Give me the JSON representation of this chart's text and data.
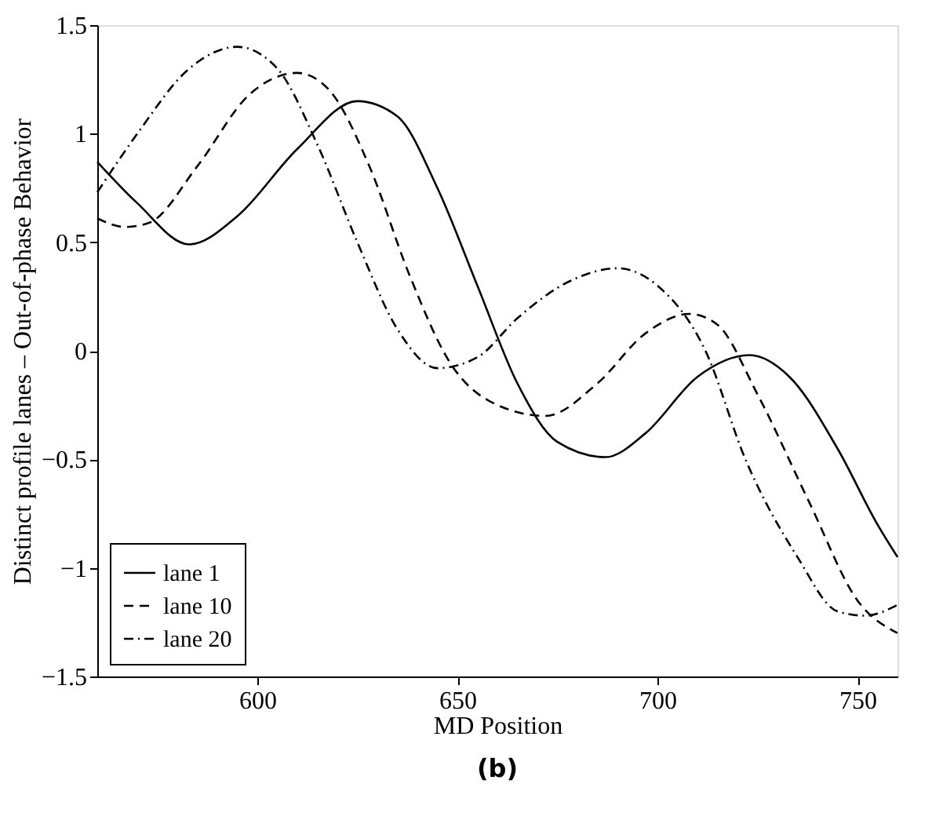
{
  "chart_data": {
    "type": "line",
    "xlabel": "MD Position",
    "ylabel": "Distinct profile lanes – Out-of-phase Behavior",
    "annotations": [
      "(b)"
    ],
    "xlim": [
      560,
      760
    ],
    "xticks": [
      600,
      650,
      700,
      750
    ],
    "ylim": [
      -1.5,
      1.5
    ],
    "yticks": [
      -1.5,
      -1,
      -0.5,
      0,
      0.5,
      1,
      1.5
    ],
    "grid": false,
    "legend": "bottom left",
    "marker": "none",
    "series": [
      {
        "name": "lane 1",
        "color": "#000000",
        "line_style": "solid",
        "x": [
          560,
          570,
          583,
          595,
          610,
          625,
          635,
          645,
          655,
          665,
          675,
          687,
          697,
          710,
          723,
          733,
          745,
          755,
          760
        ],
        "values": [
          0.87,
          0.68,
          0.49,
          0.62,
          0.93,
          1.15,
          1.08,
          0.75,
          0.3,
          -0.15,
          -0.42,
          -0.49,
          -0.38,
          -0.12,
          -0.02,
          -0.12,
          -0.45,
          -0.8,
          -0.95
        ]
      },
      {
        "name": "lane 10",
        "color": "#000000",
        "line_style": "dashed",
        "x": [
          560,
          567,
          573,
          585,
          598,
          610,
          618,
          628,
          638,
          648,
          660,
          672,
          685,
          697,
          708,
          715,
          725,
          738,
          750,
          760
        ],
        "values": [
          0.61,
          0.57,
          0.59,
          0.85,
          1.18,
          1.28,
          1.2,
          0.85,
          0.35,
          -0.05,
          -0.25,
          -0.3,
          -0.15,
          0.08,
          0.17,
          0.12,
          -0.2,
          -0.7,
          -1.15,
          -1.3
        ]
      },
      {
        "name": "lane 20",
        "color": "#000000",
        "line_style": "dotted",
        "x": [
          560,
          570,
          583,
          595,
          605,
          615,
          625,
          635,
          645,
          655,
          665,
          678,
          690,
          700,
          712,
          722,
          735,
          745,
          752,
          760
        ],
        "values": [
          0.73,
          1.0,
          1.3,
          1.4,
          1.3,
          0.95,
          0.5,
          0.1,
          -0.08,
          -0.03,
          0.15,
          0.32,
          0.38,
          0.3,
          0.0,
          -0.5,
          -0.95,
          -1.2,
          -1.22,
          -1.17
        ]
      }
    ]
  }
}
